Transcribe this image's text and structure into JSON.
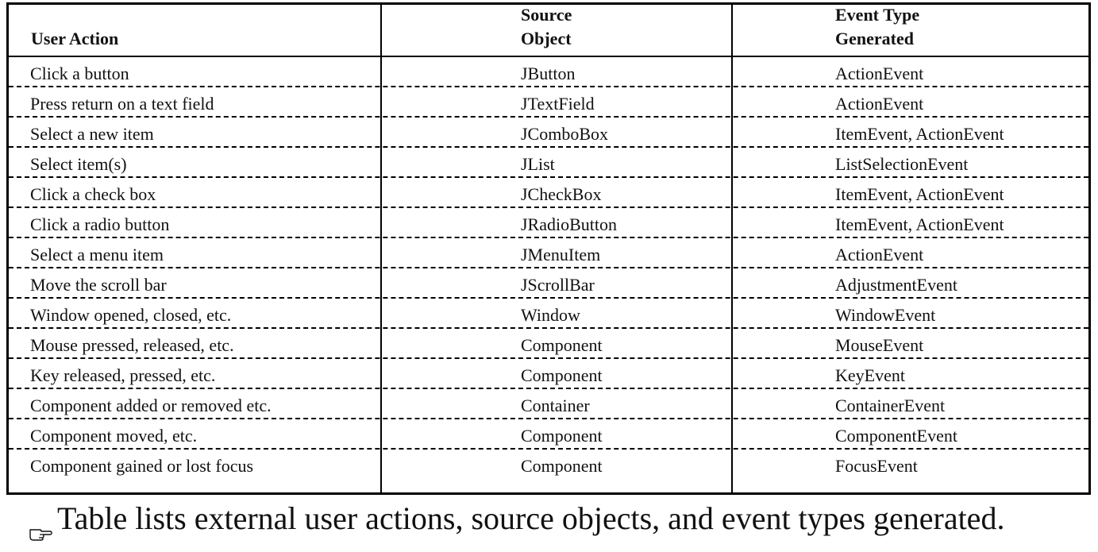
{
  "table": {
    "headers": {
      "user_action": "User Action",
      "source_object_line1": "Source",
      "source_object_line2": "Object",
      "event_type_line1": "Event Type",
      "event_type_line2": "Generated"
    },
    "rows": [
      {
        "action": "Click a button",
        "source": "JButton",
        "event": "ActionEvent"
      },
      {
        "action": "Press return on a text field",
        "source": "JTextField",
        "event": "ActionEvent"
      },
      {
        "action": "Select a new item",
        "source": "JComboBox",
        "event": "ItemEvent, ActionEvent"
      },
      {
        "action": "Select item(s)",
        "source": "JList",
        "event": "ListSelectionEvent"
      },
      {
        "action": "Click a check box",
        "source": "JCheckBox",
        "event": "ItemEvent, ActionEvent"
      },
      {
        "action": "Click a radio button",
        "source": "JRadioButton",
        "event": "ItemEvent, ActionEvent"
      },
      {
        "action": "Select a menu item",
        "source": "JMenuItem",
        "event": "ActionEvent"
      },
      {
        "action": "Move the scroll bar",
        "source": "JScrollBar",
        "event": "AdjustmentEvent"
      },
      {
        "action": "Window opened, closed, etc.",
        "source": "Window",
        "event": "WindowEvent"
      },
      {
        "action": "Mouse pressed, released, etc.",
        "source": "Component",
        "event": "MouseEvent"
      },
      {
        "action": "Key released, pressed, etc.",
        "source": "Component",
        "event": "KeyEvent"
      },
      {
        "action": "Component added or removed etc.",
        "source": "Container",
        "event": "ContainerEvent"
      },
      {
        "action": "Component moved, etc.",
        "source": "Component",
        "event": "ComponentEvent"
      },
      {
        "action": "Component gained or lost focus",
        "source": "Component",
        "event": "FocusEvent"
      }
    ]
  },
  "caption": {
    "icon": "pointing-hand-icon",
    "text": "Table lists external user actions, source objects, and event types generated."
  }
}
